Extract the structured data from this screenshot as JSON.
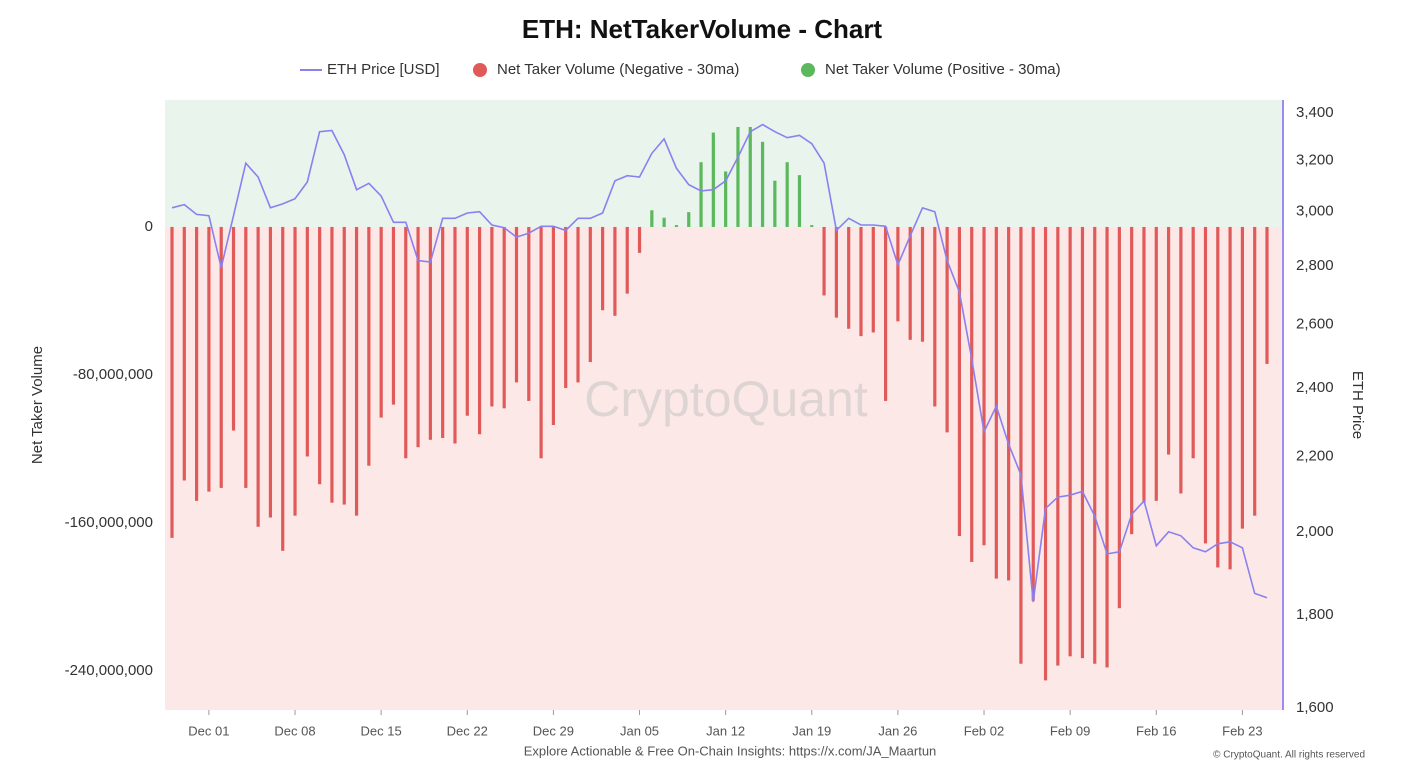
{
  "chart_data": {
    "type": "bar_line",
    "title": "ETH: NetTakerVolume - Chart",
    "y_label": "Net Taker Volume",
    "y2_label": "ETH Price",
    "watermark": "CryptoQuant",
    "footer": "Explore Actionable & Free On-Chain Insights: https://x.com/JA_Maartun",
    "copyright": "© CryptoQuant. All rights reserved",
    "categories": [
      "Nov 28",
      "Nov 29",
      "Nov 30",
      "Dec 01",
      "Dec 02",
      "Dec 03",
      "Dec 04",
      "Dec 05",
      "Dec 06",
      "Dec 07",
      "Dec 08",
      "Dec 09",
      "Dec 10",
      "Dec 11",
      "Dec 12",
      "Dec 13",
      "Dec 14",
      "Dec 15",
      "Dec 16",
      "Dec 17",
      "Dec 18",
      "Dec 19",
      "Dec 20",
      "Dec 21",
      "Dec 22",
      "Dec 23",
      "Dec 24",
      "Dec 25",
      "Dec 26",
      "Dec 27",
      "Dec 28",
      "Dec 29",
      "Dec 30",
      "Dec 31",
      "Jan 01",
      "Jan 02",
      "Jan 03",
      "Jan 04",
      "Jan 05",
      "Jan 06",
      "Jan 07",
      "Jan 08",
      "Jan 09",
      "Jan 10",
      "Jan 11",
      "Jan 12",
      "Jan 13",
      "Jan 14",
      "Jan 15",
      "Jan 16",
      "Jan 17",
      "Jan 18",
      "Jan 19",
      "Jan 20",
      "Jan 21",
      "Jan 22",
      "Jan 23",
      "Jan 24",
      "Jan 25",
      "Jan 26",
      "Jan 27",
      "Jan 28",
      "Jan 29",
      "Jan 30",
      "Jan 31",
      "Feb 01",
      "Feb 02",
      "Feb 03",
      "Feb 04",
      "Feb 05",
      "Feb 06",
      "Feb 07",
      "Feb 08",
      "Feb 09",
      "Feb 10",
      "Feb 11",
      "Feb 12",
      "Feb 13",
      "Feb 14",
      "Feb 15",
      "Feb 16",
      "Feb 17",
      "Feb 18",
      "Feb 19",
      "Feb 20",
      "Feb 21",
      "Feb 22",
      "Feb 23",
      "Feb 24",
      "Feb 25"
    ],
    "xticks": [
      "Dec 01",
      "Dec 08",
      "Dec 15",
      "Dec 22",
      "Dec 29",
      "Jan 05",
      "Jan 12",
      "Jan 19",
      "Jan 26",
      "Feb 02",
      "Feb 09",
      "Feb 16",
      "Feb 23"
    ],
    "series": [
      {
        "name": "ETH Price [USD]",
        "kind": "line",
        "axis": "y2",
        "color": "#8a80f0",
        "values": [
          3015,
          3027,
          2990,
          2985,
          2795,
          2985,
          3190,
          3135,
          3015,
          3030,
          3050,
          3115,
          3320,
          3325,
          3225,
          3085,
          3110,
          3060,
          2960,
          2960,
          2820,
          2815,
          2975,
          2975,
          2995,
          3000,
          2950,
          2940,
          2905,
          2920,
          2945,
          2945,
          2930,
          2975,
          2975,
          2995,
          3120,
          3140,
          3135,
          3230,
          3290,
          3170,
          3105,
          3080,
          3085,
          3120,
          3215,
          3320,
          3350,
          3320,
          3295,
          3305,
          3270,
          3190,
          2930,
          2975,
          2950,
          2950,
          2945,
          2805,
          2910,
          3015,
          3000,
          2820,
          2710,
          2490,
          2270,
          2345,
          2235,
          2150,
          1830,
          2060,
          2090,
          2095,
          2105,
          2040,
          1945,
          1950,
          2045,
          2080,
          1965,
          2000,
          1990,
          1960,
          1950,
          1970,
          1975,
          1960,
          1850,
          1840
        ]
      },
      {
        "name": "Net Taker Volume (Negative - 30ma)",
        "kind": "bar",
        "color": "#e05a5a",
        "values": [
          -168000000,
          -137000000,
          -148000000,
          -143000000,
          -141000000,
          -110000000,
          -141000000,
          -162000000,
          -157000000,
          -175000000,
          -156000000,
          -124000000,
          -139000000,
          -149000000,
          -150000000,
          -156000000,
          -129000000,
          -103000000,
          -96000000,
          -125000000,
          -119000000,
          -115000000,
          -114000000,
          -117000000,
          -102000000,
          -112000000,
          -97000000,
          -98000000,
          -84000000,
          -94000000,
          -125000000,
          -107000000,
          -87000000,
          -84000000,
          -73000000,
          -45000000,
          -48000000,
          -36000000,
          -14000000,
          null,
          null,
          null,
          null,
          null,
          null,
          null,
          null,
          null,
          null,
          null,
          null,
          null,
          null,
          -37000000,
          -49000000,
          -55000000,
          -59000000,
          -57000000,
          -94000000,
          -51000000,
          -61000000,
          -62000000,
          -97000000,
          -111000000,
          -167000000,
          -181000000,
          -172000000,
          -190000000,
          -191000000,
          -236000000,
          -202000000,
          -245000000,
          -237000000,
          -232000000,
          -233000000,
          -236000000,
          -238000000,
          -206000000,
          -166000000,
          -149000000,
          -148000000,
          -123000000,
          -144000000,
          -125000000,
          -171000000,
          -184000000,
          -185000000,
          -163000000,
          -156000000,
          -74000000
        ]
      },
      {
        "name": "Net Taker Volume (Positive - 30ma)",
        "kind": "bar",
        "color": "#5cb85c",
        "values": [
          null,
          null,
          null,
          null,
          null,
          null,
          null,
          null,
          null,
          null,
          null,
          null,
          null,
          null,
          null,
          null,
          null,
          null,
          null,
          null,
          null,
          null,
          null,
          null,
          null,
          null,
          null,
          null,
          null,
          null,
          null,
          null,
          null,
          null,
          null,
          null,
          null,
          null,
          null,
          9000000,
          5000000,
          1000000,
          8000000,
          35000000,
          51000000,
          30000000,
          54000000,
          54000000,
          46000000,
          25000000,
          35000000,
          28000000,
          1000000,
          null,
          null,
          null,
          null,
          null,
          null,
          null,
          null,
          null,
          null,
          null,
          null,
          null,
          null,
          null,
          null,
          null,
          null,
          null,
          null,
          null,
          null,
          null,
          null,
          null,
          null,
          null,
          null,
          null,
          null,
          null,
          null,
          null,
          null,
          null,
          null,
          null
        ]
      }
    ],
    "ylim": [
      -261000000,
      68600000
    ],
    "yticks": [
      {
        "value": -240000000,
        "label": "-240,000,000"
      },
      {
        "value": -160000000,
        "label": "-160,000,000"
      },
      {
        "value": -80000000,
        "label": "-80,000,000"
      },
      0
    ],
    "y2lim": [
      1596,
      3456
    ],
    "y2log": true,
    "y2ticks": [
      {
        "value": 1600,
        "label": "1,600"
      },
      {
        "value": 1800,
        "label": "1,800"
      },
      {
        "value": 2000,
        "label": "2,000"
      },
      {
        "value": 2200,
        "label": "2,200"
      },
      {
        "value": 2400,
        "label": "2,400"
      },
      {
        "value": 2600,
        "label": "2,600"
      },
      {
        "value": 2800,
        "label": "2,800"
      },
      {
        "value": 3000,
        "label": "3,000"
      },
      {
        "value": 3200,
        "label": "3,200"
      },
      {
        "value": 3400,
        "label": "3,400"
      }
    ],
    "positive_bg": "#e9f4ec",
    "negative_bg": "#fce9e7"
  }
}
